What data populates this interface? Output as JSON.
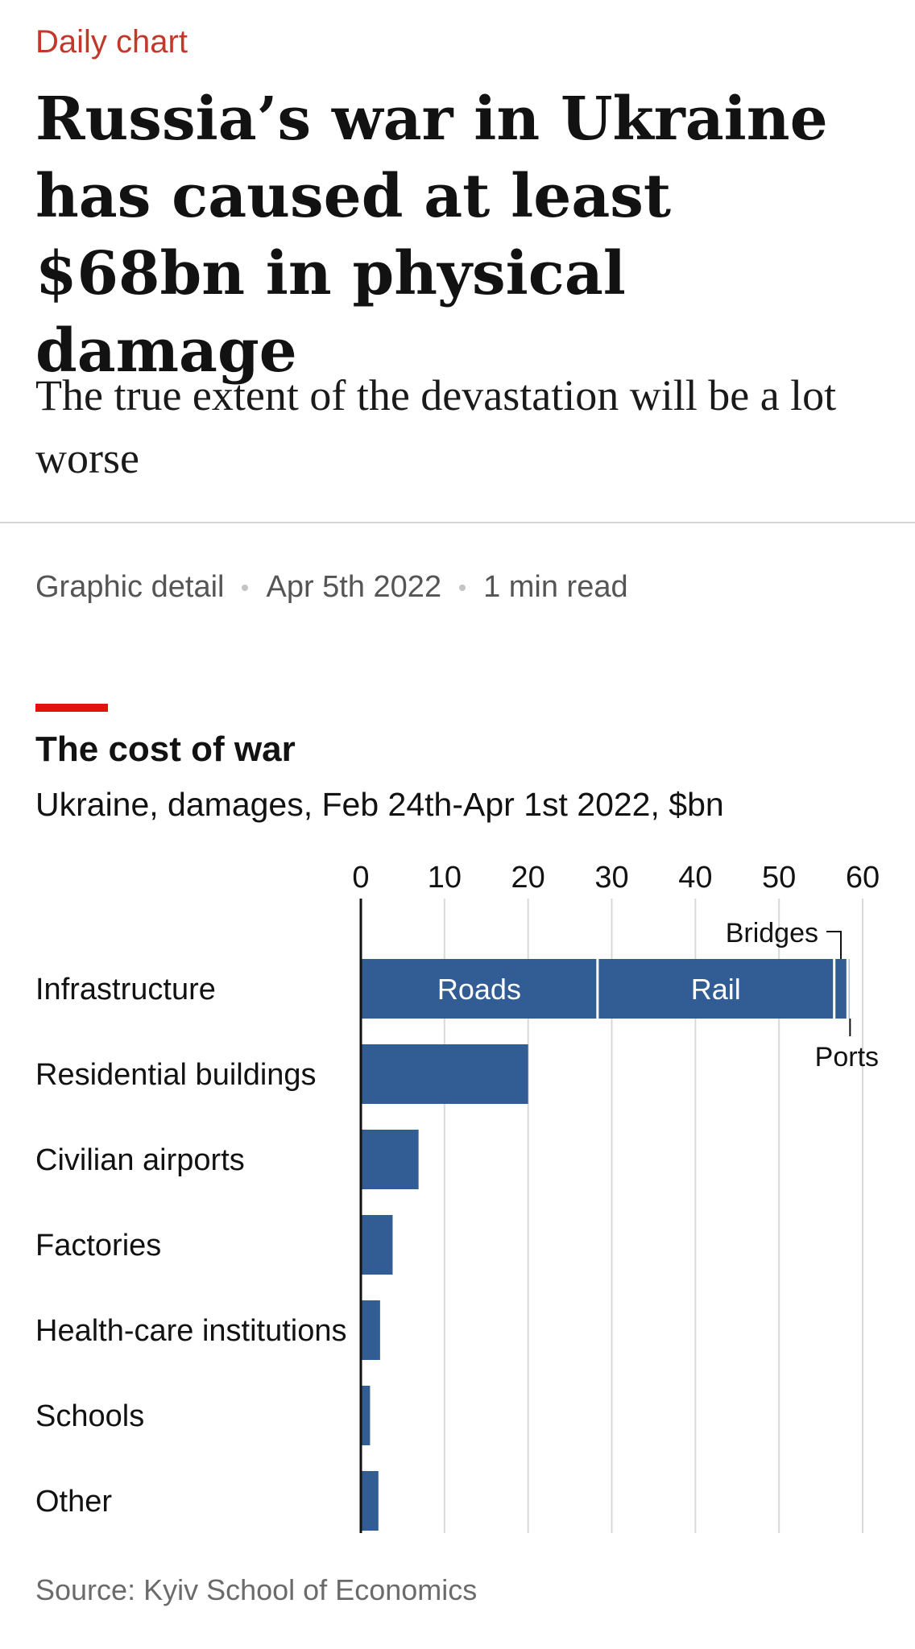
{
  "article": {
    "kicker": "Daily chart",
    "headline": "Russia’s war in Ukraine has caused at least $68bn in physical damage",
    "standfirst": "The true extent of the devastation will be a lot worse",
    "section": "Graphic detail",
    "date": "Apr 5th 2022",
    "read_time": "1 min read"
  },
  "colors": {
    "kicker": "#c0392b",
    "accent_rule": "#e3120b",
    "bar": "#325d94",
    "grid": "#d9d9d9",
    "axis": "#121212"
  },
  "chart_data": {
    "type": "bar",
    "orientation": "horizontal",
    "stacked": true,
    "title": "The cost of war",
    "subtitle": "Ukraine, damages, Feb 24th-Apr 1st 2022, $bn",
    "xlim": [
      0,
      60
    ],
    "xticks": [
      0,
      10,
      20,
      30,
      40,
      50,
      60
    ],
    "grid": true,
    "categories": [
      "Infrastructure",
      "Residential buildings",
      "Civilian airports",
      "Factories",
      "Health-care institutions",
      "Schools",
      "Other"
    ],
    "values": [
      58.4,
      20.0,
      6.9,
      3.8,
      2.3,
      1.1,
      2.1
    ],
    "segments": {
      "Infrastructure": [
        {
          "name": "Roads",
          "value": 28.3
        },
        {
          "name": "Rail",
          "value": 28.3
        },
        {
          "name": "Bridges",
          "value": 1.6
        },
        {
          "name": "Ports",
          "value": 0.2
        }
      ]
    },
    "source": "Source: Kyiv School of Economics"
  }
}
